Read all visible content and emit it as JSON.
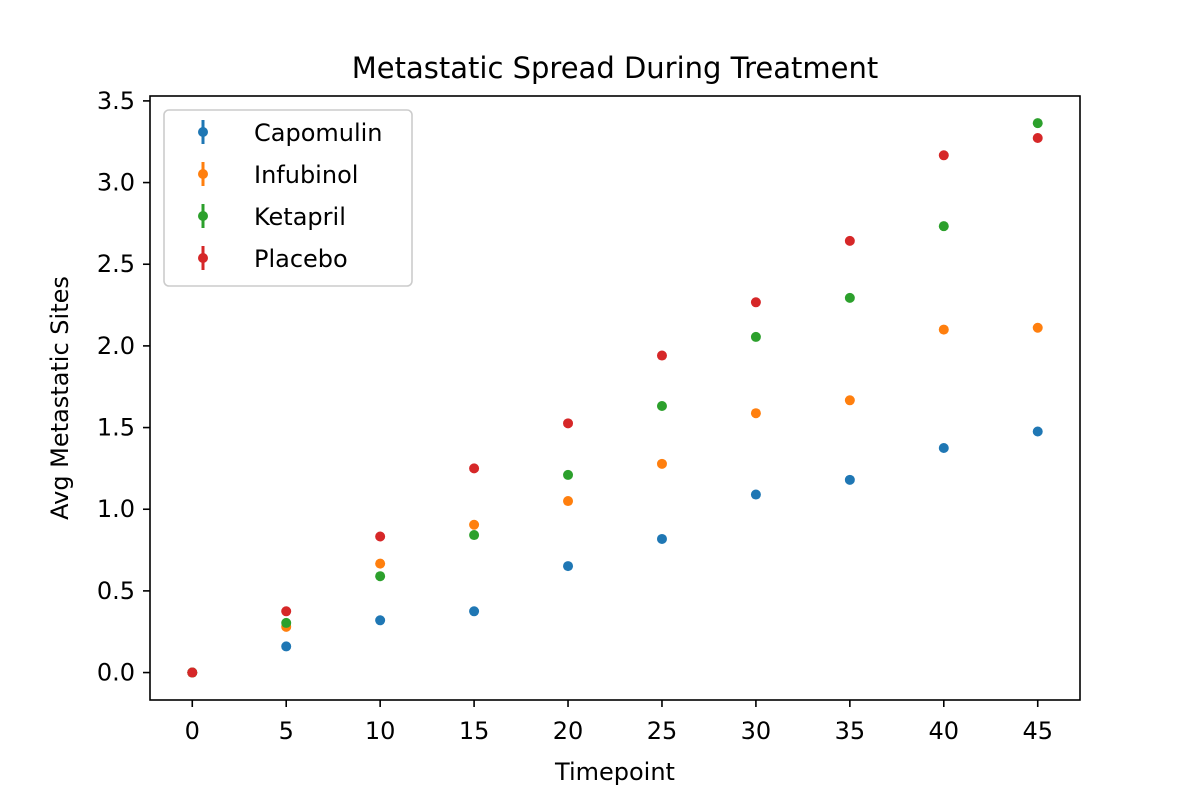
{
  "chart_data": {
    "type": "scatter",
    "title": "Metastatic Spread During Treatment",
    "xlabel": "Timepoint",
    "ylabel": "Avg Metastatic Sites",
    "xlim": [
      -2.25,
      47.25
    ],
    "ylim": [
      -0.168,
      3.53
    ],
    "xticks": [
      0,
      5,
      10,
      15,
      20,
      25,
      30,
      35,
      40,
      45
    ],
    "xtick_labels": [
      "0",
      "5",
      "10",
      "15",
      "20",
      "25",
      "30",
      "35",
      "40",
      "45"
    ],
    "yticks": [
      0.0,
      0.5,
      1.0,
      1.5,
      2.0,
      2.5,
      3.0,
      3.5
    ],
    "ytick_labels": [
      "0.0",
      "0.5",
      "1.0",
      "1.5",
      "2.0",
      "2.5",
      "3.0",
      "3.5"
    ],
    "grid": false,
    "legend_position": "top-left",
    "x": [
      0,
      5,
      10,
      15,
      20,
      25,
      30,
      35,
      40,
      45
    ],
    "series": [
      {
        "name": "Capomulin",
        "color": "#1f77b4",
        "values": [
          0.0,
          0.16,
          0.32,
          0.375,
          0.652,
          0.818,
          1.09,
          1.18,
          1.375,
          1.476
        ]
      },
      {
        "name": "Infubinol",
        "color": "#ff7f0e",
        "values": [
          0.0,
          0.28,
          0.667,
          0.905,
          1.05,
          1.278,
          1.588,
          1.667,
          2.1,
          2.111
        ]
      },
      {
        "name": "Ketapril",
        "color": "#2ca02c",
        "values": [
          0.0,
          0.304,
          0.59,
          0.842,
          1.21,
          1.632,
          2.055,
          2.294,
          2.733,
          3.364
        ]
      },
      {
        "name": "Placebo",
        "color": "#d62728",
        "values": [
          0.0,
          0.375,
          0.833,
          1.25,
          1.526,
          1.941,
          2.267,
          2.643,
          3.167,
          3.273
        ]
      }
    ]
  }
}
